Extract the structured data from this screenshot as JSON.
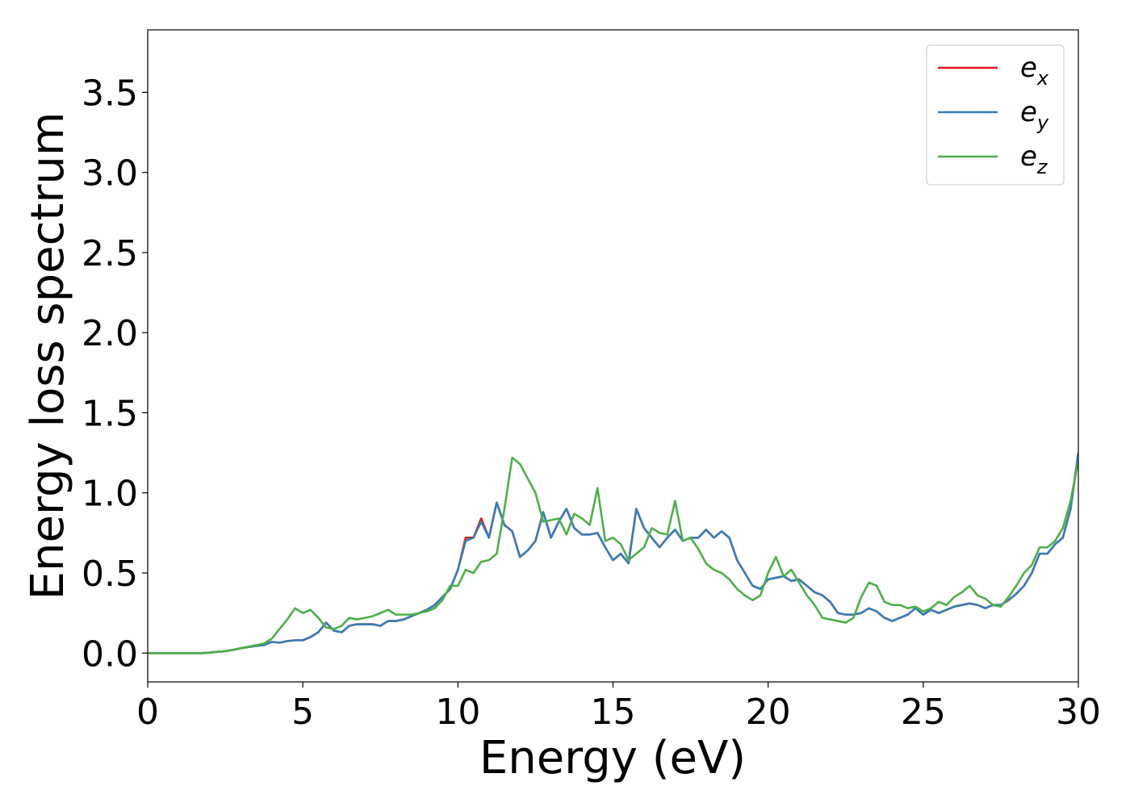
{
  "chart_data": {
    "type": "line",
    "xlabel": "Energy (eV)",
    "ylabel": "Energy loss spectrum",
    "xlim": [
      0,
      30
    ],
    "ylim": [
      -0.18,
      3.89
    ],
    "xticks": [
      0,
      5,
      10,
      15,
      20,
      25,
      30
    ],
    "yticks": [
      {
        "value": 0,
        "label": "0.0"
      },
      {
        "value": 0.5,
        "label": "0.5"
      },
      {
        "value": 1,
        "label": "1.0"
      },
      {
        "value": 1.5,
        "label": "1.5"
      },
      {
        "value": 2,
        "label": "2.0"
      },
      {
        "value": 2.5,
        "label": "2.5"
      },
      {
        "value": 3,
        "label": "3.0"
      },
      {
        "value": 3.5,
        "label": "3.5"
      }
    ],
    "grid": false,
    "legend": "upper right",
    "x": [
      0,
      0.25,
      0.5,
      0.75,
      1,
      1.25,
      1.5,
      1.75,
      2,
      2.25,
      2.5,
      2.75,
      3,
      3.25,
      3.5,
      3.75,
      4,
      4.25,
      4.5,
      4.75,
      5,
      5.25,
      5.5,
      5.75,
      6,
      6.25,
      6.5,
      6.75,
      7,
      7.25,
      7.5,
      7.75,
      8,
      8.25,
      8.5,
      8.75,
      9,
      9.25,
      9.5,
      9.75,
      10,
      10.25,
      10.5,
      10.75,
      11,
      11.25,
      11.5,
      11.75,
      12,
      12.25,
      12.5,
      12.75,
      13,
      13.25,
      13.5,
      13.75,
      14,
      14.25,
      14.5,
      14.75,
      15,
      15.25,
      15.5,
      15.75,
      16,
      16.25,
      16.5,
      16.75,
      17,
      17.25,
      17.5,
      17.75,
      18,
      18.25,
      18.5,
      18.75,
      19,
      19.25,
      19.5,
      19.75,
      20,
      20.25,
      20.5,
      20.75,
      21,
      21.25,
      21.5,
      21.75,
      22,
      22.25,
      22.5,
      22.75,
      23,
      23.25,
      23.5,
      23.75,
      24,
      24.25,
      24.5,
      24.75,
      25,
      25.25,
      25.5,
      25.75,
      26,
      26.25,
      26.5,
      26.75,
      27,
      27.25,
      27.5,
      27.75,
      28,
      28.25,
      28.5,
      28.75,
      29,
      29.25,
      29.5,
      29.75,
      30
    ],
    "series": [
      {
        "name": "e_x",
        "color": "#e41a1c",
        "values": [
          0,
          0,
          0,
          0,
          0,
          0,
          0,
          0,
          0.003,
          0.008,
          0.012,
          0.02,
          0.03,
          0.038,
          0.045,
          0.05,
          0.07,
          0.065,
          0.075,
          0.08,
          0.08,
          0.1,
          0.13,
          0.19,
          0.14,
          0.13,
          0.17,
          0.18,
          0.18,
          0.18,
          0.17,
          0.2,
          0.2,
          0.21,
          0.23,
          0.25,
          0.27,
          0.3,
          0.35,
          0.4,
          0.52,
          0.72,
          0.72,
          0.84,
          0.72,
          0.94,
          0.8,
          0.76,
          0.6,
          0.64,
          0.7,
          0.88,
          0.72,
          0.82,
          0.9,
          0.78,
          0.74,
          0.74,
          0.75,
          0.66,
          0.58,
          0.62,
          0.56,
          0.9,
          0.78,
          0.72,
          0.66,
          0.72,
          0.77,
          0.7,
          0.72,
          0.72,
          0.77,
          0.72,
          0.76,
          0.72,
          0.58,
          0.5,
          0.42,
          0.4,
          0.46,
          0.47,
          0.48,
          0.45,
          0.46,
          0.42,
          0.38,
          0.36,
          0.32,
          0.25,
          0.24,
          0.24,
          0.25,
          0.28,
          0.26,
          0.22,
          0.2,
          0.22,
          0.24,
          0.28,
          0.24,
          0.27,
          0.25,
          0.27,
          0.29,
          0.3,
          0.31,
          0.3,
          0.28,
          0.3,
          0.3,
          0.33,
          0.37,
          0.42,
          0.5,
          0.62,
          0.62,
          0.68,
          0.72,
          0.9,
          1.25
        ]
      },
      {
        "name": "e_y",
        "color": "#377eb8",
        "values": [
          0,
          0,
          0,
          0,
          0,
          0,
          0,
          0,
          0.003,
          0.008,
          0.012,
          0.02,
          0.03,
          0.038,
          0.045,
          0.05,
          0.07,
          0.065,
          0.075,
          0.08,
          0.08,
          0.1,
          0.13,
          0.19,
          0.14,
          0.13,
          0.17,
          0.18,
          0.18,
          0.18,
          0.17,
          0.2,
          0.2,
          0.21,
          0.23,
          0.25,
          0.27,
          0.3,
          0.35,
          0.4,
          0.52,
          0.7,
          0.72,
          0.82,
          0.72,
          0.94,
          0.8,
          0.76,
          0.6,
          0.64,
          0.7,
          0.88,
          0.72,
          0.82,
          0.9,
          0.78,
          0.74,
          0.74,
          0.75,
          0.66,
          0.58,
          0.62,
          0.56,
          0.9,
          0.78,
          0.72,
          0.66,
          0.72,
          0.77,
          0.7,
          0.72,
          0.72,
          0.77,
          0.72,
          0.76,
          0.72,
          0.58,
          0.5,
          0.42,
          0.4,
          0.46,
          0.47,
          0.48,
          0.45,
          0.46,
          0.42,
          0.38,
          0.36,
          0.32,
          0.25,
          0.24,
          0.24,
          0.25,
          0.28,
          0.26,
          0.22,
          0.2,
          0.22,
          0.24,
          0.28,
          0.24,
          0.27,
          0.25,
          0.27,
          0.29,
          0.3,
          0.31,
          0.3,
          0.28,
          0.3,
          0.3,
          0.33,
          0.37,
          0.42,
          0.5,
          0.62,
          0.62,
          0.68,
          0.72,
          0.9,
          1.25
        ]
      },
      {
        "name": "e_z",
        "color": "#4daf4a",
        "values": [
          0,
          0,
          0,
          0,
          0,
          0,
          0,
          0,
          0.003,
          0.008,
          0.012,
          0.02,
          0.03,
          0.04,
          0.05,
          0.06,
          0.09,
          0.15,
          0.21,
          0.28,
          0.25,
          0.27,
          0.22,
          0.16,
          0.15,
          0.17,
          0.22,
          0.21,
          0.22,
          0.23,
          0.25,
          0.27,
          0.24,
          0.24,
          0.24,
          0.25,
          0.26,
          0.28,
          0.33,
          0.42,
          0.42,
          0.52,
          0.5,
          0.57,
          0.58,
          0.62,
          0.9,
          1.22,
          1.18,
          1.09,
          1.0,
          0.82,
          0.83,
          0.84,
          0.74,
          0.87,
          0.84,
          0.8,
          1.03,
          0.7,
          0.72,
          0.68,
          0.58,
          0.62,
          0.66,
          0.78,
          0.75,
          0.74,
          0.95,
          0.7,
          0.72,
          0.65,
          0.56,
          0.52,
          0.5,
          0.46,
          0.4,
          0.36,
          0.33,
          0.36,
          0.5,
          0.6,
          0.48,
          0.52,
          0.44,
          0.36,
          0.3,
          0.22,
          0.21,
          0.2,
          0.19,
          0.22,
          0.35,
          0.44,
          0.42,
          0.32,
          0.3,
          0.3,
          0.28,
          0.29,
          0.26,
          0.28,
          0.32,
          0.3,
          0.35,
          0.38,
          0.42,
          0.36,
          0.34,
          0.3,
          0.29,
          0.35,
          0.42,
          0.5,
          0.55,
          0.66,
          0.66,
          0.7,
          0.78,
          0.95,
          1.2
        ]
      }
    ]
  }
}
